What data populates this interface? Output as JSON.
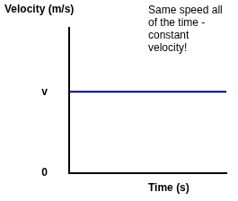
{
  "chart_data": {
    "type": "line",
    "ylabel": "Velocity (m/s)",
    "xlabel": "Time (s)",
    "annotation": [
      "Same speed all",
      "of the time -",
      "constant",
      "velocity!"
    ],
    "x": [
      0,
      10
    ],
    "values": [
      5.6,
      5.6
    ],
    "color": "#000080",
    "xlim": [
      0,
      10
    ],
    "ylim": [
      0,
      10
    ],
    "yticks": [
      0,
      {
        "value": 5.6,
        "label": "v"
      }
    ],
    "grid": false,
    "tick_labels": "y"
  }
}
